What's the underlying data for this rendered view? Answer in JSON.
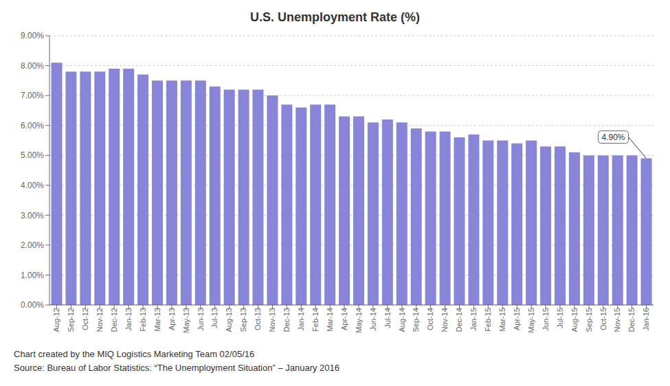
{
  "chart_data": {
    "type": "bar",
    "title": "U.S. Unemployment Rate (%)",
    "categories": [
      "Aug-12",
      "Sep-12",
      "Oct-12",
      "Nov-12",
      "Dec-12",
      "Jan-13",
      "Feb-13",
      "Mar-13",
      "Apr-13",
      "May-13",
      "Jun-13",
      "Jul-13",
      "Aug-13",
      "Sep-13",
      "Oct-13",
      "Nov-13",
      "Dec-13",
      "Jan-14",
      "Feb-14",
      "Mar-14",
      "Apr-14",
      "May-14",
      "Jun-14",
      "Jul-14",
      "Aug-14",
      "Sep-14",
      "Oct-14",
      "Nov-14",
      "Dec-14",
      "Jan-15",
      "Feb-15",
      "Mar-15",
      "Apr-15",
      "May-15",
      "Jun-15",
      "Jul-15",
      "Aug-15",
      "Sep-15",
      "Oct-15",
      "Nov-15",
      "Dec-15",
      "Jan-16"
    ],
    "values": [
      0.081,
      0.078,
      0.078,
      0.078,
      0.079,
      0.079,
      0.077,
      0.075,
      0.075,
      0.075,
      0.075,
      0.073,
      0.072,
      0.072,
      0.072,
      0.07,
      0.067,
      0.066,
      0.067,
      0.067,
      0.063,
      0.063,
      0.061,
      0.062,
      0.061,
      0.059,
      0.058,
      0.058,
      0.056,
      0.057,
      0.055,
      0.055,
      0.054,
      0.055,
      0.053,
      0.053,
      0.051,
      0.05,
      0.05,
      0.05,
      0.05,
      0.049
    ],
    "color": "#8884d8",
    "ylim": [
      0.0,
      0.09
    ],
    "yticks": [
      {
        "value": 0.0,
        "label": "0.00%"
      },
      {
        "value": 0.01,
        "label": "1.00%"
      },
      {
        "value": 0.02,
        "label": "2.00%"
      },
      {
        "value": 0.03,
        "label": "3.00%"
      },
      {
        "value": 0.04,
        "label": "4.00%"
      },
      {
        "value": 0.05,
        "label": "5.00%"
      },
      {
        "value": 0.06,
        "label": "6.00%"
      },
      {
        "value": 0.07,
        "label": "7.00%"
      },
      {
        "value": 0.08,
        "label": "8.00%"
      },
      {
        "value": 0.09,
        "label": "9.00%"
      }
    ],
    "grid": true,
    "annotations": [
      {
        "text": "4.90%",
        "x": "Jan-16",
        "y": 0.049
      }
    ],
    "footer": [
      "Chart created by the MIQ Logistics Marketing Team 02/05/16",
      "Source: Bureau of Labor Statistics: “The Unemployment Situation” – January 2016"
    ]
  }
}
